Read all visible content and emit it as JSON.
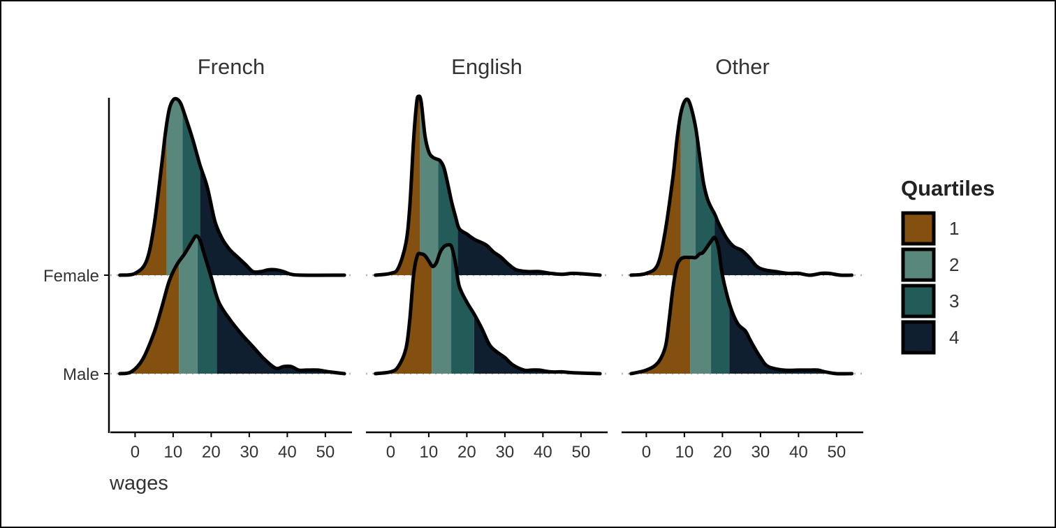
{
  "chart_data": {
    "type": "ridgeline density",
    "xlabel": "wages",
    "ylabel": "",
    "facets": [
      "French",
      "English",
      "Other"
    ],
    "groups": [
      "Female",
      "Male"
    ],
    "x_ticks": [
      0,
      10,
      20,
      30,
      40,
      50
    ],
    "xlim": [
      -6.5,
      57
    ],
    "grid": false,
    "legend": {
      "title": "Quartiles",
      "position": "right",
      "entries": [
        {
          "label": "1",
          "color": "#83500F"
        },
        {
          "label": "2",
          "color": "#5A877B"
        },
        {
          "label": "3",
          "color": "#225B58"
        },
        {
          "label": "4",
          "color": "#101F30"
        }
      ]
    },
    "panels": [
      {
        "facet": "French",
        "ridges": [
          {
            "group": "Female",
            "quartile_breaks": [
              8.3,
              12.5,
              17.1
            ],
            "density": [
              [
                -4,
                0.0
              ],
              [
                0,
                0.01
              ],
              [
                3,
                0.08
              ],
              [
                5,
                0.28
              ],
              [
                7,
                0.62
              ],
              [
                8,
                0.8
              ],
              [
                9,
                0.93
              ],
              [
                10,
                0.98
              ],
              [
                11,
                0.985
              ],
              [
                12,
                0.96
              ],
              [
                13,
                0.9
              ],
              [
                15,
                0.77
              ],
              [
                17,
                0.62
              ],
              [
                19,
                0.49
              ],
              [
                21,
                0.3
              ],
              [
                23,
                0.2
              ],
              [
                25,
                0.14
              ],
              [
                27,
                0.1
              ],
              [
                29,
                0.06
              ],
              [
                31,
                0.02
              ],
              [
                33,
                0.02
              ],
              [
                35,
                0.03
              ],
              [
                37,
                0.03
              ],
              [
                39,
                0.02
              ],
              [
                41,
                0.005
              ],
              [
                44,
                0.0
              ],
              [
                55,
                0.0
              ]
            ]
          },
          {
            "group": "Male",
            "quartile_breaks": [
              11.5,
              16.4,
              21.5
            ],
            "density": [
              [
                -4,
                0.0
              ],
              [
                -1,
                0.01
              ],
              [
                2,
                0.08
              ],
              [
                5,
                0.23
              ],
              [
                7,
                0.37
              ],
              [
                9,
                0.52
              ],
              [
                11,
                0.61
              ],
              [
                13,
                0.67
              ],
              [
                15,
                0.74
              ],
              [
                16,
                0.77
              ],
              [
                17,
                0.75
              ],
              [
                18,
                0.68
              ],
              [
                20,
                0.54
              ],
              [
                22,
                0.4
              ],
              [
                25,
                0.3
              ],
              [
                28,
                0.22
              ],
              [
                31,
                0.15
              ],
              [
                34,
                0.08
              ],
              [
                37,
                0.03
              ],
              [
                39,
                0.04
              ],
              [
                41,
                0.04
              ],
              [
                43,
                0.02
              ],
              [
                45,
                0.02
              ],
              [
                48,
                0.02
              ],
              [
                51,
                0.01
              ],
              [
                55,
                0.0
              ]
            ]
          }
        ]
      },
      {
        "facet": "English",
        "ridges": [
          {
            "group": "Female",
            "quartile_breaks": [
              7.7,
              12.5,
              17.6
            ],
            "density": [
              [
                -4,
                0.0
              ],
              [
                0,
                0.01
              ],
              [
                2,
                0.04
              ],
              [
                4,
                0.18
              ],
              [
                5,
                0.38
              ],
              [
                6,
                0.75
              ],
              [
                6.8,
                0.96
              ],
              [
                7.3,
                1.0
              ],
              [
                8,
                0.97
              ],
              [
                9,
                0.78
              ],
              [
                10,
                0.69
              ],
              [
                11,
                0.66
              ],
              [
                12,
                0.65
              ],
              [
                13,
                0.64
              ],
              [
                14,
                0.6
              ],
              [
                15,
                0.51
              ],
              [
                16,
                0.41
              ],
              [
                17,
                0.33
              ],
              [
                18,
                0.26
              ],
              [
                20,
                0.23
              ],
              [
                22,
                0.2
              ],
              [
                25,
                0.17
              ],
              [
                27,
                0.13
              ],
              [
                29,
                0.1
              ],
              [
                31,
                0.06
              ],
              [
                33,
                0.03
              ],
              [
                36,
                0.02
              ],
              [
                39,
                0.02
              ],
              [
                42,
                0.01
              ],
              [
                45,
                0.005
              ],
              [
                48,
                0.01
              ],
              [
                52,
                0.005
              ],
              [
                55,
                0.0
              ]
            ]
          },
          {
            "group": "Male",
            "quartile_breaks": [
              10.8,
              15.9,
              21.9
            ],
            "density": [
              [
                -4,
                0.0
              ],
              [
                0,
                0.01
              ],
              [
                2,
                0.04
              ],
              [
                4,
                0.14
              ],
              [
                5,
                0.3
              ],
              [
                6,
                0.55
              ],
              [
                7,
                0.66
              ],
              [
                8,
                0.67
              ],
              [
                9,
                0.66
              ],
              [
                10,
                0.63
              ],
              [
                11,
                0.6
              ],
              [
                12,
                0.62
              ],
              [
                13,
                0.68
              ],
              [
                14,
                0.71
              ],
              [
                15,
                0.72
              ],
              [
                16,
                0.71
              ],
              [
                17,
                0.62
              ],
              [
                18,
                0.49
              ],
              [
                20,
                0.4
              ],
              [
                22,
                0.33
              ],
              [
                24,
                0.25
              ],
              [
                26,
                0.16
              ],
              [
                28,
                0.12
              ],
              [
                30,
                0.09
              ],
              [
                32,
                0.05
              ],
              [
                35,
                0.02
              ],
              [
                37,
                0.02
              ],
              [
                39,
                0.02
              ],
              [
                42,
                0.01
              ],
              [
                45,
                0.01
              ],
              [
                48,
                0.005
              ],
              [
                55,
                0.0
              ]
            ]
          }
        ]
      },
      {
        "facet": "Other",
        "ridges": [
          {
            "group": "Female",
            "quartile_breaks": [
              9.0,
              12.9,
              18.0
            ],
            "density": [
              [
                -4,
                0.0
              ],
              [
                0,
                0.01
              ],
              [
                3,
                0.06
              ],
              [
                5,
                0.25
              ],
              [
                7,
                0.55
              ],
              [
                8,
                0.75
              ],
              [
                9,
                0.9
              ],
              [
                10,
                0.97
              ],
              [
                11,
                0.98
              ],
              [
                12,
                0.92
              ],
              [
                13,
                0.82
              ],
              [
                14,
                0.67
              ],
              [
                15,
                0.52
              ],
              [
                16,
                0.43
              ],
              [
                17,
                0.38
              ],
              [
                18,
                0.34
              ],
              [
                19,
                0.29
              ],
              [
                21,
                0.21
              ],
              [
                23,
                0.16
              ],
              [
                25,
                0.14
              ],
              [
                27,
                0.1
              ],
              [
                29,
                0.05
              ],
              [
                31,
                0.03
              ],
              [
                34,
                0.02
              ],
              [
                37,
                0.01
              ],
              [
                40,
                0.01
              ],
              [
                43,
                0.0
              ],
              [
                46,
                0.01
              ],
              [
                48,
                0.01
              ],
              [
                51,
                0.0
              ],
              [
                54,
                0.0
              ]
            ]
          },
          {
            "group": "Male",
            "quartile_breaks": [
              11.5,
              17.0,
              21.8
            ],
            "density": [
              [
                -4,
                0.0
              ],
              [
                0,
                0.02
              ],
              [
                3,
                0.06
              ],
              [
                5,
                0.15
              ],
              [
                6,
                0.3
              ],
              [
                7,
                0.48
              ],
              [
                8,
                0.6
              ],
              [
                9,
                0.64
              ],
              [
                10,
                0.65
              ],
              [
                11,
                0.65
              ],
              [
                12,
                0.65
              ],
              [
                13,
                0.65
              ],
              [
                14,
                0.67
              ],
              [
                15,
                0.68
              ],
              [
                17,
                0.74
              ],
              [
                18,
                0.76
              ],
              [
                19,
                0.7
              ],
              [
                20,
                0.55
              ],
              [
                22,
                0.38
              ],
              [
                24,
                0.28
              ],
              [
                26,
                0.24
              ],
              [
                27,
                0.2
              ],
              [
                28,
                0.16
              ],
              [
                30,
                0.09
              ],
              [
                32,
                0.04
              ],
              [
                36,
                0.02
              ],
              [
                40,
                0.02
              ],
              [
                43,
                0.02
              ],
              [
                45,
                0.02
              ],
              [
                47,
                0.01
              ],
              [
                50,
                0.0
              ],
              [
                54,
                0.0
              ]
            ]
          }
        ]
      }
    ]
  }
}
